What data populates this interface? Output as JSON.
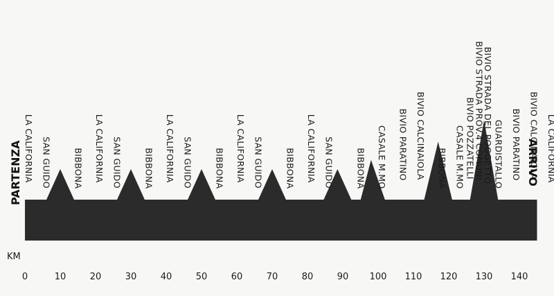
{
  "chart_data": {
    "type": "area",
    "xlabel": "KM",
    "xlim": [
      0,
      145
    ],
    "xticks": [
      0,
      10,
      20,
      30,
      40,
      50,
      60,
      70,
      80,
      90,
      100,
      110,
      120,
      130,
      140
    ],
    "start_label": "PARTENZA",
    "finish_label": "ARRIVO",
    "profile": [
      {
        "km": 0,
        "h": 0
      },
      {
        "km": 6,
        "h": 0
      },
      {
        "km": 10,
        "h": 1
      },
      {
        "km": 14,
        "h": 0
      },
      {
        "km": 26,
        "h": 0
      },
      {
        "km": 30,
        "h": 1
      },
      {
        "km": 34,
        "h": 0
      },
      {
        "km": 46,
        "h": 0
      },
      {
        "km": 50,
        "h": 1
      },
      {
        "km": 54,
        "h": 0
      },
      {
        "km": 66,
        "h": 0
      },
      {
        "km": 70,
        "h": 1
      },
      {
        "km": 74,
        "h": 0
      },
      {
        "km": 84.5,
        "h": 0
      },
      {
        "km": 88.5,
        "h": 1
      },
      {
        "km": 92.5,
        "h": 0
      },
      {
        "km": 95,
        "h": 0
      },
      {
        "km": 98,
        "h": 1.3
      },
      {
        "km": 102,
        "h": 0
      },
      {
        "km": 113,
        "h": 0
      },
      {
        "km": 117,
        "h": 1.9
      },
      {
        "km": 121,
        "h": 0
      },
      {
        "km": 126,
        "h": 0
      },
      {
        "km": 130,
        "h": 2.6
      },
      {
        "km": 134,
        "h": 0
      },
      {
        "km": 145,
        "h": 0
      }
    ],
    "places": [
      {
        "km": 1,
        "label": "LA CALIFORNIA"
      },
      {
        "km": 6,
        "label": "SAN GUIDO"
      },
      {
        "km": 15,
        "label": "BIBBONA"
      },
      {
        "km": 21,
        "label": "LA CALIFORNIA"
      },
      {
        "km": 26,
        "label": "SAN GUIDO"
      },
      {
        "km": 35,
        "label": "BIBBONA"
      },
      {
        "km": 41,
        "label": "LA CALIFORNIA"
      },
      {
        "km": 46,
        "label": "SAN GUIDO"
      },
      {
        "km": 55,
        "label": "BIBBONA"
      },
      {
        "km": 61,
        "label": "LA CALIFORNIA"
      },
      {
        "km": 66,
        "label": "SAN GUIDO"
      },
      {
        "km": 75,
        "label": "BIBBONA"
      },
      {
        "km": 81,
        "label": "LA CALIFORNIA"
      },
      {
        "km": 86,
        "label": "SAN GUIDO"
      },
      {
        "km": 95,
        "label": "BIBBONA"
      },
      {
        "km": 101,
        "label": "CASALE M.MO"
      },
      {
        "km": 107,
        "label": "BIVIO PARATINO"
      },
      {
        "km": 112,
        "label": "BIVIO CALCINAIOLA"
      },
      {
        "km": 118,
        "label": "BIBBONA"
      },
      {
        "km": 123,
        "label": "CASALE M.MO"
      },
      {
        "km": 126,
        "label": "BIVIO POZZATELLI"
      },
      {
        "km": 128.5,
        "label": "BIVIO STRADA PROV.4 COMUNI"
      },
      {
        "km": 131,
        "label": "BIVIO STRADA DEL POGGETTO"
      },
      {
        "km": 134,
        "label": "GUARDISTALLO"
      },
      {
        "km": 139,
        "label": "BIVIO PARATINO"
      },
      {
        "km": 144,
        "label": "BIVIO CALCINAIOLA"
      },
      {
        "km": 149,
        "label": "LA CALIFORNIA"
      }
    ]
  }
}
